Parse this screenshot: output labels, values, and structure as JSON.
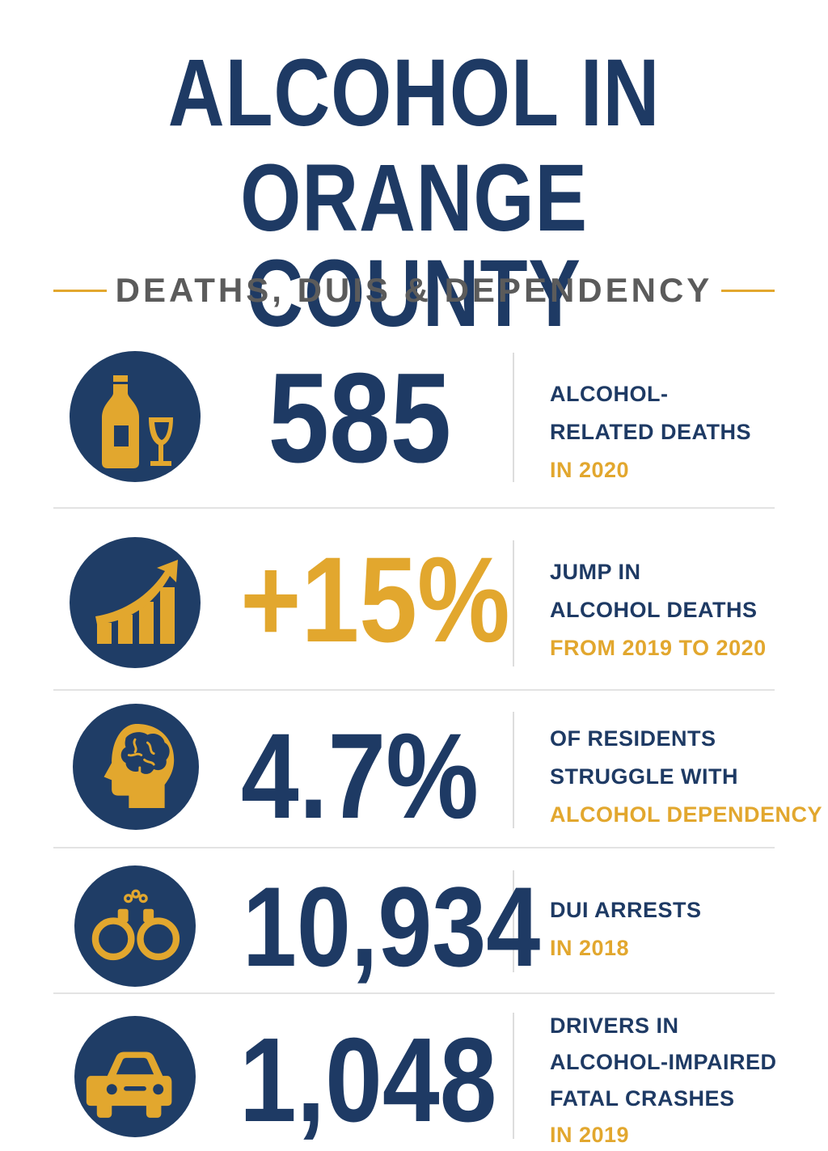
{
  "title": {
    "line1": "ALCOHOL IN",
    "line2": "ORANGE COUNTY"
  },
  "subtitle": "DEATHS, DUIS & DEPENDENCY",
  "colors": {
    "navy": "#1e3a64",
    "gold": "#e2a72e",
    "gray": "#5b5b5b"
  },
  "stats": [
    {
      "icon": "wine-bottle-glass-icon",
      "value": "585",
      "lines": [
        "ALCOHOL-",
        "RELATED DEATHS"
      ],
      "highlight": [
        "IN 2020"
      ]
    },
    {
      "icon": "rising-chart-icon",
      "value": "+15%",
      "lines": [
        "JUMP IN",
        "ALCOHOL DEATHS"
      ],
      "highlight": [
        "FROM 2019 TO 2020"
      ]
    },
    {
      "icon": "brain-head-icon",
      "value": "4.7%",
      "lines": [
        "OF RESIDENTS",
        "STRUGGLE WITH"
      ],
      "highlight": [
        "ALCOHOL DEPENDENCY"
      ]
    },
    {
      "icon": "handcuffs-icon",
      "value": "10,934",
      "lines": [
        "DUI ARRESTS"
      ],
      "highlight": [
        "IN 2018"
      ]
    },
    {
      "icon": "car-icon",
      "value": "1,048",
      "lines": [
        "DRIVERS IN",
        "ALCOHOL-IMPAIRED",
        "FATAL CRASHES"
      ],
      "highlight": [
        "IN 2019"
      ]
    }
  ]
}
